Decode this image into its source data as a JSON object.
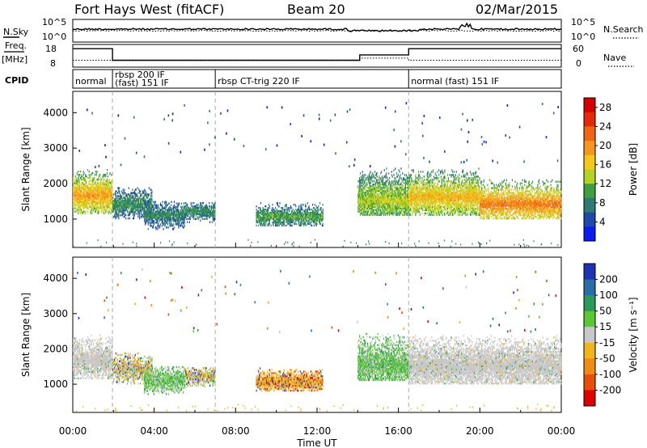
{
  "header": {
    "station": "Fort Hays West (fitACF)",
    "beam": "Beam 20",
    "date": "02/Mar/2015"
  },
  "strip": {
    "nsky_label": "N.Sky",
    "nsearch_label": "N.Search",
    "nsky_ticks": [
      "10^5",
      "10^0"
    ],
    "nsearch_ticks": [
      "10^5",
      "10^0"
    ],
    "freq_label": "Freq.",
    "freq_unit": "[MHz]",
    "freq_ticks": [
      "18",
      "8"
    ],
    "nave_label": "Nave",
    "nave_ticks": [
      "60",
      "0"
    ],
    "cpid_label": "CPID",
    "cpid_segments": [
      {
        "label": "normal",
        "start": 0,
        "end": 1.95
      },
      {
        "label": "rbsp 200 IF",
        "start": 1.95,
        "end": 7.0
      },
      {
        "label": "(fast) 151 IF",
        "start": 1.95,
        "end": 7.0
      },
      {
        "label": "rbsp CT-trig 220 IF",
        "start": 7.0,
        "end": 16.5
      },
      {
        "label": "normal (fast) 151 IF",
        "start": 16.5,
        "end": 24
      }
    ],
    "freq_steps": [
      {
        "start": 0,
        "end": 1.95,
        "value": 17
      },
      {
        "start": 1.95,
        "end": 14.1,
        "value": 10.5
      },
      {
        "start": 14.1,
        "end": 16.5,
        "value": 13.5
      },
      {
        "start": 16.5,
        "end": 24,
        "value": 17
      }
    ],
    "nave_steps": [
      {
        "start": 0,
        "end": 1.95,
        "value": 15
      },
      {
        "start": 1.95,
        "end": 14.1,
        "value": 14
      },
      {
        "start": 14.1,
        "end": 16.5,
        "value": 22
      },
      {
        "start": 16.5,
        "end": 24,
        "value": 15
      }
    ]
  },
  "chart_data": [
    {
      "type": "heatmap",
      "title": "Power",
      "ylabel": "Slant Range [km]",
      "xlim": [
        0,
        24
      ],
      "ylim": [
        200,
        4600
      ],
      "yticks": [
        "1000",
        "2000",
        "3000",
        "4000"
      ],
      "colorbar_label": "Power [dB]",
      "colorbar_ticks": [
        "4",
        "8",
        "12",
        "16",
        "20",
        "24",
        "28"
      ],
      "colorbar_colors": [
        "#0a1cf0",
        "#1d4aa8",
        "#2f7a73",
        "#3fa040",
        "#b4d222",
        "#f5c81e",
        "#f5961e",
        "#f06414",
        "#e6280a",
        "#d20000"
      ],
      "colorbar_range": [
        0,
        30
      ],
      "echo_regions": [
        {
          "t0": 0.0,
          "t1": 1.95,
          "r0": 1150,
          "r1": 2500,
          "core": 1650,
          "level": 20
        },
        {
          "t0": 1.95,
          "t1": 3.9,
          "r0": 1000,
          "r1": 1900,
          "core": 1400,
          "level": 9
        },
        {
          "t0": 3.5,
          "t1": 5.5,
          "r0": 700,
          "r1": 1500,
          "core": 1100,
          "level": 8
        },
        {
          "t0": 5.5,
          "t1": 7.0,
          "r0": 850,
          "r1": 1450,
          "core": 1200,
          "level": 9
        },
        {
          "t0": 9.0,
          "t1": 12.3,
          "r0": 800,
          "r1": 1500,
          "core": 1050,
          "level": 10
        },
        {
          "t0": 14.0,
          "t1": 16.5,
          "r0": 1100,
          "r1": 2800,
          "core": 1500,
          "level": 14
        },
        {
          "t0": 16.5,
          "t1": 20.0,
          "r0": 1100,
          "r1": 2600,
          "core": 1600,
          "level": 18
        },
        {
          "t0": 20.0,
          "t1": 24.0,
          "r0": 1000,
          "r1": 2300,
          "core": 1400,
          "level": 22
        }
      ]
    },
    {
      "type": "heatmap",
      "title": "Velocity",
      "ylabel": "Slant Range [km]",
      "xlim": [
        0,
        24
      ],
      "ylim": [
        200,
        4600
      ],
      "yticks": [
        "1000",
        "2000",
        "3000",
        "4000"
      ],
      "colorbar_label": "Velocity [m s⁻¹]",
      "colorbar_ticks": [
        "200",
        "100",
        "50",
        "15",
        "-15",
        "-50",
        "-100",
        "-200"
      ],
      "colorbar_colors": [
        "#1e32b4",
        "#2a6ea8",
        "#2a9a5a",
        "#5ac832",
        "#c8c8c8",
        "#f0b41e",
        "#f08c14",
        "#e6500a",
        "#dc0000"
      ],
      "echo_regions": [
        {
          "t0": 0.0,
          "t1": 1.95,
          "r0": 1150,
          "r1": 2500,
          "core": 1650,
          "kind": "ground"
        },
        {
          "t0": 1.95,
          "t1": 3.9,
          "r0": 1000,
          "r1": 1900,
          "core": 1400,
          "kind": "mixed"
        },
        {
          "t0": 3.5,
          "t1": 5.5,
          "r0": 700,
          "r1": 1500,
          "core": 1100,
          "kind": "green"
        },
        {
          "t0": 5.5,
          "t1": 7.0,
          "r0": 850,
          "r1": 1450,
          "core": 1200,
          "kind": "mixed"
        },
        {
          "t0": 9.0,
          "t1": 12.3,
          "r0": 800,
          "r1": 1500,
          "core": 1050,
          "kind": "orange"
        },
        {
          "t0": 14.0,
          "t1": 16.5,
          "r0": 1100,
          "r1": 2800,
          "core": 1500,
          "kind": "green"
        },
        {
          "t0": 16.5,
          "t1": 24.0,
          "r0": 1000,
          "r1": 2600,
          "core": 1500,
          "kind": "ground"
        }
      ]
    }
  ],
  "xaxis": {
    "label": "Time UT",
    "ticks": [
      "00:00",
      "04:00",
      "08:00",
      "12:00",
      "16:00",
      "20:00",
      "00:00"
    ],
    "dashed_lines": [
      1.95,
      7.0,
      16.5
    ]
  }
}
